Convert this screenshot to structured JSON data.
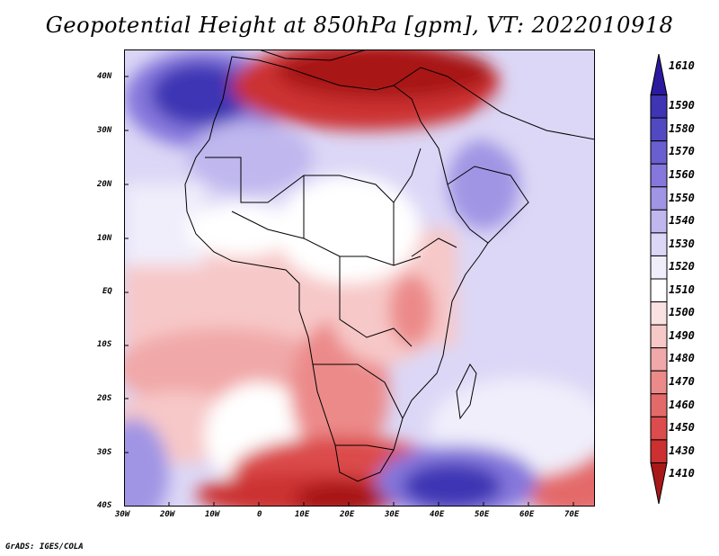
{
  "title": "Geopotential Height at 850hPa [gpm], VT: 2022010918",
  "credit": "GrADS: IGES/COLA",
  "lat_labels": [
    "40N",
    "30N",
    "20N",
    "10N",
    "EQ",
    "10S",
    "20S",
    "30S",
    "40S"
  ],
  "lon_labels": [
    "30W",
    "20W",
    "10W",
    "0",
    "10E",
    "20E",
    "30E",
    "40E",
    "50E",
    "60E",
    "70E"
  ],
  "colorbar": {
    "levels": [
      "1610",
      "1590",
      "1580",
      "1570",
      "1560",
      "1550",
      "1540",
      "1530",
      "1520",
      "1510",
      "1500",
      "1490",
      "1480",
      "1470",
      "1460",
      "1450",
      "1430",
      "1410"
    ],
    "colors": [
      "#2b1a9e",
      "#3e34b4",
      "#5149c2",
      "#6a5fd0",
      "#8577dc",
      "#a095e4",
      "#bfb7ee",
      "#dcd7f6",
      "#f0eefb",
      "#ffffff",
      "#fbe2e2",
      "#f7c8c8",
      "#f1a8a8",
      "#ec8a8a",
      "#e46a6a",
      "#dc4c4c",
      "#cc3030",
      "#a81818"
    ]
  }
}
